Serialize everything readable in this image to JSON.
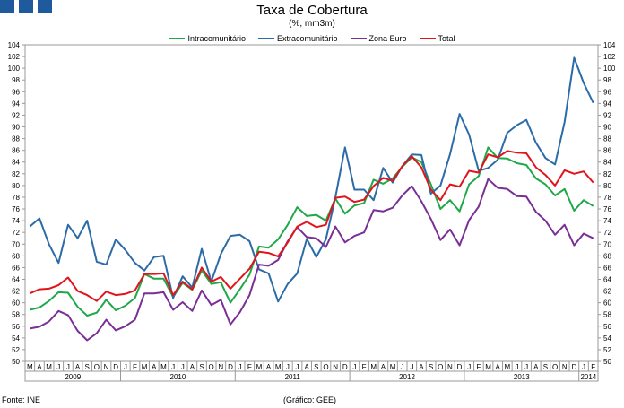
{
  "title": "Taxa de Cobertura",
  "subtitle": "(%, mm3m)",
  "footer": {
    "source": "Fonte: INE",
    "credit": "(Gráfico: GEE)"
  },
  "chart_data": {
    "type": "line",
    "title": "Taxa de Cobertura",
    "subtitle": "(%, mm3m)",
    "ylim": [
      50,
      104
    ],
    "y_ticks": [
      50,
      52,
      54,
      56,
      58,
      60,
      62,
      64,
      66,
      68,
      70,
      72,
      74,
      76,
      78,
      80,
      82,
      84,
      86,
      88,
      90,
      92,
      94,
      96,
      98,
      100,
      102,
      104
    ],
    "grid": false,
    "legend_position": "top",
    "month_labels": [
      "M",
      "A",
      "M",
      "J",
      "J",
      "A",
      "S",
      "O",
      "N",
      "D",
      "J",
      "F",
      "M",
      "A",
      "M",
      "J",
      "J",
      "A",
      "S",
      "O",
      "N",
      "D",
      "J",
      "F",
      "M",
      "A",
      "M",
      "J",
      "J",
      "A",
      "S",
      "O",
      "N",
      "D",
      "J",
      "F",
      "M",
      "A",
      "M",
      "J",
      "J",
      "A",
      "S",
      "O",
      "N",
      "D",
      "J",
      "F",
      "M",
      "A",
      "M",
      "J",
      "J",
      "A",
      "S",
      "O",
      "N",
      "D",
      "J",
      "F"
    ],
    "years": [
      {
        "label": "2009",
        "start": 0,
        "end": 9
      },
      {
        "label": "2010",
        "start": 10,
        "end": 21
      },
      {
        "label": "2011",
        "start": 22,
        "end": 33
      },
      {
        "label": "2012",
        "start": 34,
        "end": 45
      },
      {
        "label": "2013",
        "start": 46,
        "end": 57
      },
      {
        "label": "2014",
        "start": 58,
        "end": 59
      }
    ],
    "series": [
      {
        "name": "Intracomunitário",
        "color": "#1fa84a",
        "values": [
          58.8,
          59.2,
          60.3,
          61.8,
          61.7,
          59.3,
          57.8,
          58.3,
          60.5,
          58.7,
          59.5,
          60.8,
          64.9,
          64.1,
          64.1,
          61.0,
          63.4,
          62.2,
          65.5,
          63.2,
          63.5,
          60.0,
          62.3,
          64.8,
          69.6,
          69.4,
          70.8,
          73.3,
          76.3,
          74.8,
          75.0,
          74.0,
          77.8,
          75.2,
          76.6,
          77.0,
          81.0,
          80.3,
          81.2,
          83.2,
          84.8,
          84.0,
          80.2,
          76.0,
          77.5,
          75.6,
          80.2,
          81.6,
          86.5,
          84.7,
          84.6,
          83.8,
          83.5,
          81.2,
          80.2,
          78.3,
          79.4,
          75.7,
          77.5,
          76.5
        ]
      },
      {
        "name": "Extracomunitário",
        "color": "#2b6ca8",
        "values": [
          73.0,
          74.4,
          70.0,
          66.8,
          73.3,
          71.0,
          74.0,
          67.0,
          66.5,
          70.8,
          69.0,
          66.8,
          65.5,
          67.8,
          68.0,
          60.8,
          64.5,
          62.6,
          69.2,
          63.6,
          68.3,
          71.4,
          71.6,
          70.5,
          65.7,
          65.0,
          60.2,
          63.2,
          65.0,
          70.9,
          67.8,
          70.8,
          78.0,
          86.5,
          79.3,
          79.3,
          77.5,
          83.0,
          80.5,
          83.3,
          85.3,
          85.2,
          78.6,
          80.0,
          85.3,
          92.2,
          88.7,
          82.5,
          83.0,
          84.4,
          89.0,
          90.3,
          91.2,
          87.3,
          84.7,
          83.6,
          90.8,
          101.8,
          97.5,
          94.1
        ]
      },
      {
        "name": "Zona Euro",
        "color": "#7a2f96",
        "values": [
          55.6,
          55.9,
          56.8,
          58.6,
          57.9,
          55.2,
          53.6,
          54.8,
          57.1,
          55.3,
          56.0,
          57.1,
          61.6,
          61.6,
          61.8,
          58.8,
          60.1,
          58.6,
          62.1,
          59.6,
          60.5,
          56.3,
          58.4,
          61.3,
          66.5,
          66.3,
          67.3,
          70.5,
          72.9,
          71.2,
          71.0,
          69.5,
          73.0,
          70.3,
          71.4,
          72.0,
          75.8,
          75.6,
          76.2,
          78.3,
          79.9,
          77.3,
          74.3,
          70.7,
          72.5,
          69.8,
          74.1,
          76.4,
          81.1,
          79.6,
          79.4,
          78.2,
          78.1,
          75.5,
          74.0,
          71.6,
          73.3,
          69.8,
          71.8,
          71.0
        ]
      },
      {
        "name": "Total",
        "color": "#e1141b",
        "values": [
          61.6,
          62.3,
          62.4,
          63.0,
          64.3,
          62.0,
          61.3,
          60.3,
          61.9,
          61.3,
          61.5,
          62.1,
          64.9,
          64.9,
          65.0,
          61.3,
          63.6,
          62.3,
          66.0,
          63.6,
          64.4,
          62.4,
          64.1,
          65.8,
          68.7,
          68.5,
          67.9,
          70.3,
          73.0,
          73.8,
          72.9,
          73.3,
          77.9,
          78.1,
          77.2,
          77.6,
          79.9,
          81.3,
          80.8,
          83.3,
          85.0,
          83.1,
          79.3,
          77.5,
          80.2,
          79.8,
          82.5,
          82.2,
          85.3,
          84.8,
          85.9,
          85.6,
          85.5,
          83.1,
          81.8,
          80.0,
          82.6,
          82.0,
          82.4,
          80.5
        ]
      }
    ]
  }
}
